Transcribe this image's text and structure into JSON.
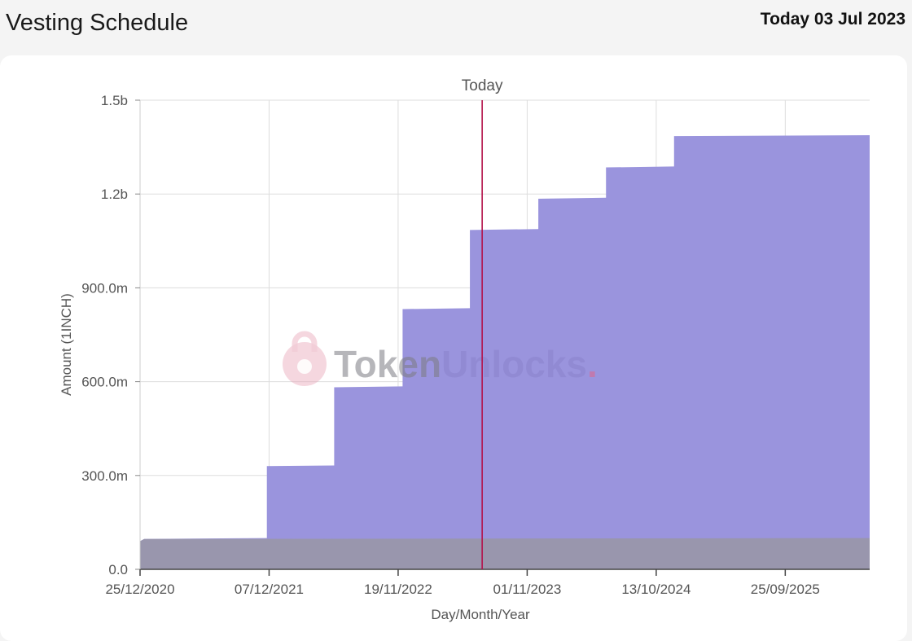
{
  "header": {
    "title": "Vesting Schedule",
    "today_label": "Today 03 Jul 2023"
  },
  "watermark": {
    "word1": "Token",
    "word2": "Unlocks",
    "dot": "."
  },
  "colors": {
    "unlocked": "#9a94dd",
    "initial": "#9996ad",
    "today_line": "#b3124a",
    "grid": "#dddddd"
  },
  "chart_data": {
    "type": "area",
    "step": true,
    "xlabel": "Day/Month/Year",
    "ylabel": "Amount (1INCH)",
    "ylim": [
      0,
      1500000000
    ],
    "xlim": [
      "2020-12-25",
      "2026-05-10"
    ],
    "y_ticks": [
      {
        "value": 0,
        "label": "0.0"
      },
      {
        "value": 300000000,
        "label": "300.0m"
      },
      {
        "value": 600000000,
        "label": "600.0m"
      },
      {
        "value": 900000000,
        "label": "900.0m"
      },
      {
        "value": 1200000000,
        "label": "1.2b"
      },
      {
        "value": 1500000000,
        "label": "1.5b"
      }
    ],
    "x_ticks": [
      "25/12/2020",
      "07/12/2021",
      "19/11/2022",
      "01/11/2023",
      "13/10/2024",
      "25/09/2025"
    ],
    "x_tick_dates": [
      "2020-12-25",
      "2021-12-07",
      "2022-11-19",
      "2023-11-01",
      "2024-10-13",
      "2025-09-25"
    ],
    "today": {
      "label": "Today",
      "date": "2023-07-03"
    },
    "grid": true,
    "series": [
      {
        "color": "#9996ad",
        "points": [
          {
            "x": "2020-12-25",
            "y": 90000000
          },
          {
            "x": "2021-01-05",
            "y": 97000000
          },
          {
            "x": "2026-05-10",
            "y": 100000000
          }
        ]
      },
      {
        "color": "#9a94dd",
        "points": [
          {
            "x": "2020-12-25",
            "y": 90000000
          },
          {
            "x": "2021-01-05",
            "y": 97000000
          },
          {
            "x": "2021-12-01",
            "y": 100000000
          },
          {
            "x": "2021-12-01",
            "y": 330000000
          },
          {
            "x": "2022-05-31",
            "y": 332000000
          },
          {
            "x": "2022-05-31",
            "y": 582000000
          },
          {
            "x": "2022-12-01",
            "y": 585000000
          },
          {
            "x": "2022-12-01",
            "y": 832000000
          },
          {
            "x": "2023-05-31",
            "y": 835000000
          },
          {
            "x": "2023-05-31",
            "y": 1085000000
          },
          {
            "x": "2023-12-01",
            "y": 1088000000
          },
          {
            "x": "2023-12-01",
            "y": 1185000000
          },
          {
            "x": "2024-05-31",
            "y": 1188000000
          },
          {
            "x": "2024-05-31",
            "y": 1285000000
          },
          {
            "x": "2024-11-30",
            "y": 1288000000
          },
          {
            "x": "2024-11-30",
            "y": 1385000000
          },
          {
            "x": "2026-05-10",
            "y": 1388000000
          }
        ]
      }
    ]
  }
}
